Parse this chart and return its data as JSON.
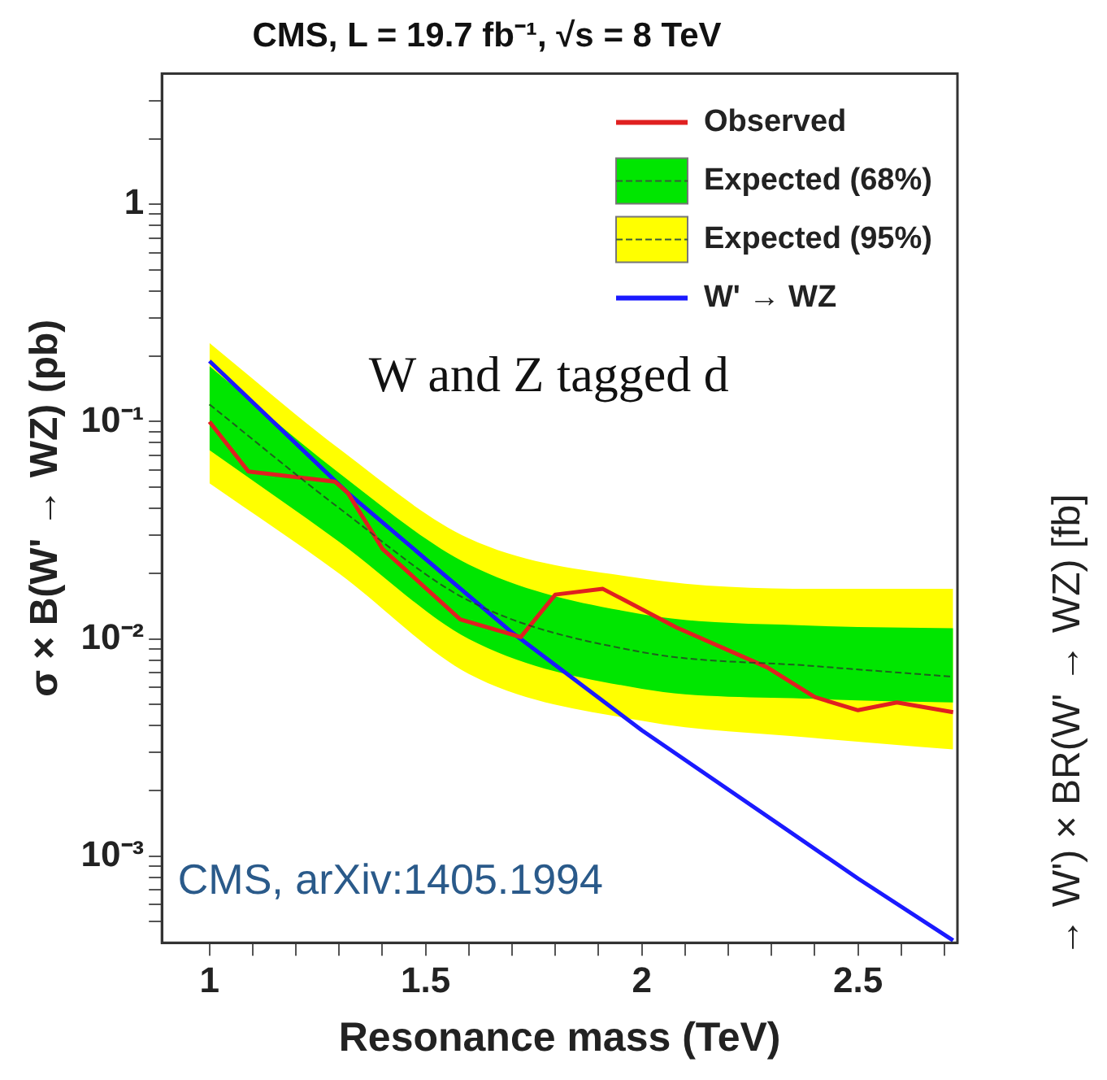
{
  "chart_data": {
    "type": "line",
    "title": "CMS, L = 19.7 fb⁻¹, √s = 8 TeV",
    "xlabel": "Resonance mass (TeV)",
    "ylabel": "σ × B(W' → WZ) (pb)",
    "annotations": [
      "CMS, arXiv:1405.1994",
      "W and Z tagged d",
      "→ W') × BR(W' → WZ) [fb]"
    ],
    "log": "y",
    "grid": false,
    "legend": "top right",
    "marker": "none",
    "xlim": [
      0.89,
      2.73
    ],
    "ylim": [
      0.0004,
      4
    ],
    "xticks": [
      1,
      {
        "value": 1.1,
        "label": null
      },
      {
        "value": 1.2,
        "label": null
      },
      {
        "value": 1.3,
        "label": null
      },
      {
        "value": 1.4,
        "label": null
      },
      1.5,
      {
        "value": 1.6,
        "label": null
      },
      {
        "value": 1.7,
        "label": null
      },
      {
        "value": 1.8,
        "label": null
      },
      {
        "value": 1.9,
        "label": null
      },
      2,
      {
        "value": 2.1,
        "label": null
      },
      {
        "value": 2.2,
        "label": null
      },
      {
        "value": 2.3,
        "label": null
      },
      {
        "value": 2.4,
        "label": null
      },
      2.5,
      {
        "value": 2.6,
        "label": null
      },
      {
        "value": 2.7,
        "label": null
      }
    ],
    "yticks": [
      {
        "value": 0.0005,
        "label": null
      },
      {
        "value": 0.0006,
        "label": null
      },
      {
        "value": 0.0007,
        "label": null
      },
      {
        "value": 0.0008,
        "label": null
      },
      {
        "value": 0.0009,
        "label": null
      },
      {
        "value": 0.001,
        "label": "10⁻³"
      },
      {
        "value": 0.002,
        "label": null
      },
      {
        "value": 0.003,
        "label": null
      },
      {
        "value": 0.004,
        "label": null
      },
      {
        "value": 0.005,
        "label": null
      },
      {
        "value": 0.006,
        "label": null
      },
      {
        "value": 0.007,
        "label": null
      },
      {
        "value": 0.008,
        "label": null
      },
      {
        "value": 0.009,
        "label": null
      },
      {
        "value": 0.01,
        "label": "10⁻²"
      },
      {
        "value": 0.02,
        "label": null
      },
      {
        "value": 0.03,
        "label": null
      },
      {
        "value": 0.04,
        "label": null
      },
      {
        "value": 0.05,
        "label": null
      },
      {
        "value": 0.06,
        "label": null
      },
      {
        "value": 0.07,
        "label": null
      },
      {
        "value": 0.08,
        "label": null
      },
      {
        "value": 0.09,
        "label": null
      },
      {
        "value": 0.1,
        "label": "10⁻¹"
      },
      {
        "value": 0.2,
        "label": null
      },
      {
        "value": 0.3,
        "label": null
      },
      {
        "value": 0.4,
        "label": null
      },
      {
        "value": 0.5,
        "label": null
      },
      {
        "value": 0.6,
        "label": null
      },
      {
        "value": 0.7,
        "label": null
      },
      {
        "value": 0.8,
        "label": null
      },
      {
        "value": 0.9,
        "label": null
      },
      1,
      {
        "value": 2,
        "label": null
      },
      {
        "value": 3,
        "label": null
      }
    ],
    "series": [
      {
        "name": "Observed",
        "color": "#e02020",
        "x": [
          1,
          1.09,
          1.29,
          1.32,
          1.4,
          1.58,
          1.72,
          1.8,
          1.91,
          2.08,
          2.29,
          2.4,
          2.5,
          2.59,
          2.72
        ],
        "values": [
          0.1,
          0.059,
          0.053,
          0.047,
          0.026,
          0.0123,
          0.0102,
          0.016,
          0.017,
          0.0113,
          0.0074,
          0.0054,
          0.0047,
          0.0051,
          0.0046
        ]
      },
      {
        "name": "Expected (68%)",
        "line_style": "dashed",
        "color": "#00e600",
        "x": [
          1,
          1.3,
          1.6,
          2,
          2.4,
          2.72
        ],
        "values": [
          0.12,
          0.04,
          0.015,
          0.0087,
          0.0075,
          0.0067
        ],
        "lower": [
          0.074,
          0.028,
          0.01,
          0.0059,
          0.0053,
          0.0051
        ],
        "upper": [
          0.18,
          0.058,
          0.022,
          0.013,
          0.0115,
          0.0112
        ]
      },
      {
        "name": "Expected (95%)",
        "line_style": "dashed",
        "color": "#ffff00",
        "x": [
          1,
          1.3,
          1.6,
          2,
          2.4,
          2.72
        ],
        "values": [
          null,
          null,
          null,
          null,
          null,
          null
        ],
        "lower": [
          0.052,
          0.02,
          0.0069,
          0.0042,
          0.0035,
          0.0031
        ],
        "upper": [
          0.23,
          0.075,
          0.029,
          0.019,
          0.017,
          0.017
        ]
      },
      {
        "name": "W' → WZ",
        "color": "#1a1aff",
        "x": [
          1,
          1.32,
          1.7,
          2,
          2.5,
          2.72
        ],
        "values": [
          0.19,
          0.047,
          0.0107,
          0.0038,
          0.00079,
          0.00041
        ]
      }
    ]
  }
}
